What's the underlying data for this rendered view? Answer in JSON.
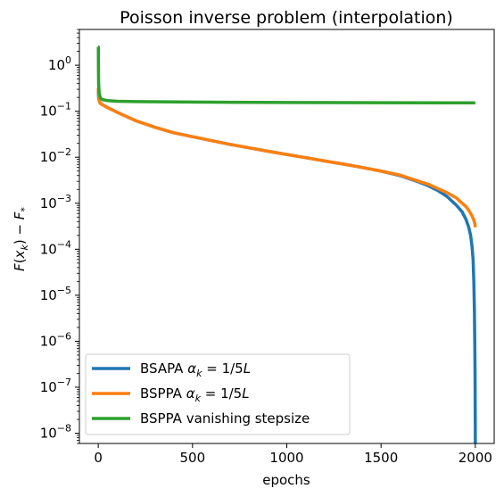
{
  "chart_data": {
    "type": "line",
    "title": "Poisson inverse problem (interpolation)",
    "xlabel": "epochs",
    "ylabel": "F(x_k) − F_*",
    "xlim": [
      -100,
      2100
    ],
    "ylim": [
      6e-09,
      6
    ],
    "yscale": "log",
    "grid": false,
    "legend_position": "lower-left",
    "x_ticks": [
      {
        "value": 0,
        "label": "0"
      },
      {
        "value": 500,
        "label": "500"
      },
      {
        "value": 1000,
        "label": "1000"
      },
      {
        "value": 1500,
        "label": "1500"
      },
      {
        "value": 2000,
        "label": "2000"
      }
    ],
    "y_ticks": [
      {
        "value": 1.0,
        "base": "10",
        "exp": "0"
      },
      {
        "value": 0.1,
        "base": "10",
        "exp": "−1"
      },
      {
        "value": 0.01,
        "base": "10",
        "exp": "−2"
      },
      {
        "value": 0.001,
        "base": "10",
        "exp": "−3"
      },
      {
        "value": 0.0001,
        "base": "10",
        "exp": "−4"
      },
      {
        "value": 1e-05,
        "base": "10",
        "exp": "−5"
      },
      {
        "value": 1e-06,
        "base": "10",
        "exp": "−6"
      },
      {
        "value": 1e-07,
        "base": "10",
        "exp": "−7"
      },
      {
        "value": 1e-08,
        "base": "10",
        "exp": "−8"
      }
    ],
    "series": [
      {
        "name": "BSAPA α_k = 1/5L",
        "color": "#1f77b4",
        "x": [
          0,
          2,
          5,
          10,
          20,
          50,
          100,
          200,
          300,
          400,
          500,
          600,
          700,
          800,
          900,
          1000,
          1100,
          1200,
          1300,
          1400,
          1500,
          1600,
          1700,
          1750,
          1800,
          1850,
          1900,
          1930,
          1950,
          1965,
          1975,
          1982,
          1988,
          1992,
          1995,
          1997,
          1998.5,
          1999.3,
          2000
        ],
        "y": [
          0.28,
          0.2,
          0.17,
          0.15,
          0.14,
          0.12,
          0.095,
          0.062,
          0.045,
          0.034,
          0.028,
          0.023,
          0.019,
          0.016,
          0.0135,
          0.0115,
          0.0098,
          0.0083,
          0.0071,
          0.006,
          0.005,
          0.004,
          0.0029,
          0.0024,
          0.0019,
          0.0014,
          0.0009,
          0.00065,
          0.00045,
          0.0003,
          0.0002,
          0.00012,
          6e-05,
          2e-05,
          5e-06,
          1e-06,
          2e-07,
          4e-08,
          6e-09
        ]
      },
      {
        "name": "BSPPA α_k = 1/5L",
        "color": "#ff7f0e",
        "x": [
          0,
          2,
          5,
          10,
          20,
          50,
          100,
          200,
          300,
          400,
          500,
          600,
          700,
          800,
          900,
          1000,
          1100,
          1200,
          1300,
          1400,
          1500,
          1600,
          1700,
          1750,
          1800,
          1850,
          1900,
          1930,
          1950,
          1965,
          1975,
          1985,
          1993,
          1998,
          2000
        ],
        "y": [
          0.32,
          0.22,
          0.17,
          0.15,
          0.14,
          0.12,
          0.095,
          0.062,
          0.045,
          0.034,
          0.028,
          0.023,
          0.019,
          0.016,
          0.0135,
          0.0115,
          0.0098,
          0.0083,
          0.0071,
          0.006,
          0.005,
          0.0041,
          0.003,
          0.0026,
          0.0021,
          0.0017,
          0.0013,
          0.001,
          0.00085,
          0.0007,
          0.0006,
          0.0005,
          0.00042,
          0.00035,
          0.0003
        ]
      },
      {
        "name": "BSPPA vanishing stepsize",
        "color": "#2ca02c",
        "x": [
          0,
          0.5,
          1,
          2,
          5,
          10,
          20,
          50,
          100,
          200,
          500,
          1000,
          1500,
          2000
        ],
        "y": [
          2.5,
          2.5,
          0.9,
          0.4,
          0.25,
          0.2,
          0.18,
          0.17,
          0.165,
          0.162,
          0.158,
          0.155,
          0.153,
          0.152
        ]
      }
    ]
  }
}
